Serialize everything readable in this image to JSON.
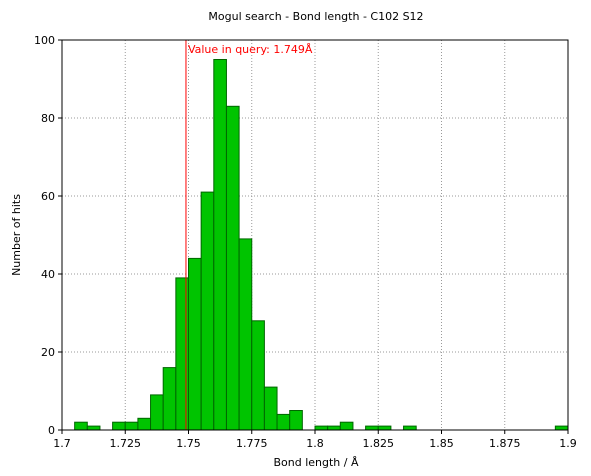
{
  "chart_data": {
    "type": "bar",
    "title": "Mogul search - Bond length - C102 S12",
    "xlabel": "Bond length / Å",
    "ylabel": "Number of hits",
    "xlim": [
      1.7,
      1.9
    ],
    "ylim": [
      0,
      100
    ],
    "xticks": [
      "1.7",
      "1.725",
      "1.75",
      "1.775",
      "1.8",
      "1.825",
      "1.85",
      "1.875",
      "1.9"
    ],
    "yticks": [
      "0",
      "20",
      "40",
      "60",
      "80",
      "100"
    ],
    "grid": true,
    "bin_width": 0.005,
    "bins": [
      {
        "start": 1.705,
        "count": 2
      },
      {
        "start": 1.71,
        "count": 1
      },
      {
        "start": 1.72,
        "count": 2
      },
      {
        "start": 1.725,
        "count": 2
      },
      {
        "start": 1.73,
        "count": 3
      },
      {
        "start": 1.735,
        "count": 9
      },
      {
        "start": 1.74,
        "count": 16
      },
      {
        "start": 1.745,
        "count": 39
      },
      {
        "start": 1.75,
        "count": 44
      },
      {
        "start": 1.755,
        "count": 61
      },
      {
        "start": 1.76,
        "count": 95
      },
      {
        "start": 1.765,
        "count": 83
      },
      {
        "start": 1.77,
        "count": 49
      },
      {
        "start": 1.775,
        "count": 28
      },
      {
        "start": 1.78,
        "count": 11
      },
      {
        "start": 1.785,
        "count": 4
      },
      {
        "start": 1.79,
        "count": 5
      },
      {
        "start": 1.8,
        "count": 1
      },
      {
        "start": 1.805,
        "count": 1
      },
      {
        "start": 1.81,
        "count": 2
      },
      {
        "start": 1.82,
        "count": 1
      },
      {
        "start": 1.825,
        "count": 1
      },
      {
        "start": 1.835,
        "count": 1
      },
      {
        "start": 1.895,
        "count": 1
      }
    ],
    "query_value": 1.749,
    "query_label": "Value in query: 1.749Å",
    "bar_color": "#00c400",
    "bar_edge_color": "#006600",
    "query_line_color": "#ff0000"
  }
}
